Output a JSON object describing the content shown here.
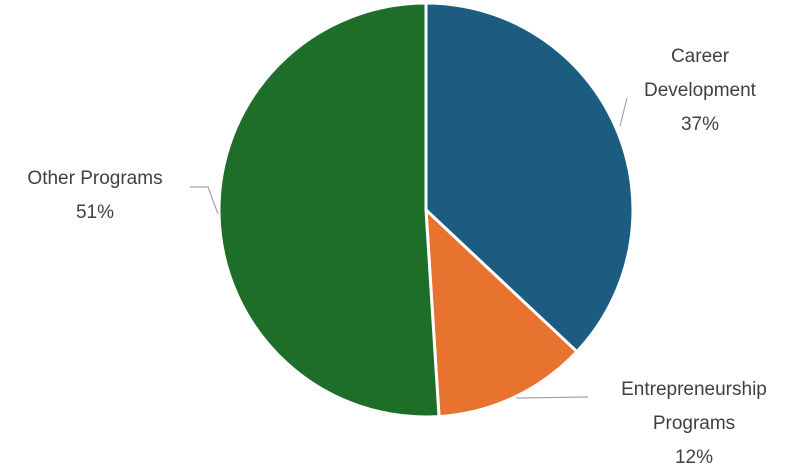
{
  "chart_data": {
    "type": "pie",
    "categories": [
      "Career Development",
      "Entrepreneurship Programs",
      "Other Programs"
    ],
    "values": [
      37,
      12,
      51
    ],
    "unit": "%",
    "colors": [
      "#1b5c80",
      "#e8732f",
      "#1e6e2a"
    ],
    "labels": [
      {
        "lines": [
          "Career",
          "Development"
        ],
        "value_text": "37%"
      },
      {
        "lines": [
          "Entrepreneurship",
          "Programs"
        ],
        "value_text": "12%"
      },
      {
        "lines": [
          "Other Programs"
        ],
        "value_text": "51%"
      }
    ],
    "legend": "none",
    "start_angle": "12 o'clock",
    "direction": "clockwise"
  }
}
